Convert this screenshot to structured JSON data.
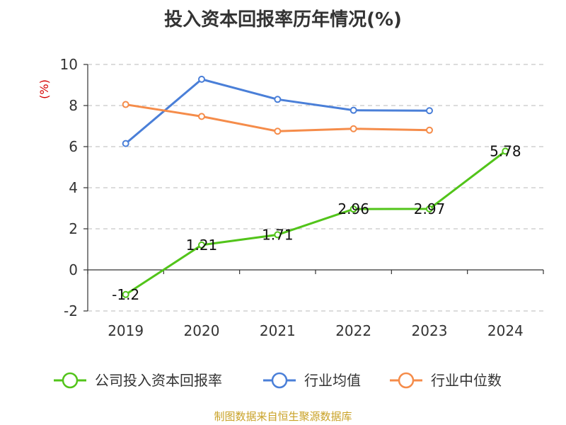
{
  "chart_data": {
    "type": "line",
    "title": "投入资本回报率历年情况(%)",
    "ylabel": "(%)",
    "xlabel": "",
    "categories": [
      "2019",
      "2020",
      "2021",
      "2022",
      "2023",
      "2024"
    ],
    "ylim": [
      -2,
      10
    ],
    "yticks": [
      -2,
      0,
      2,
      4,
      6,
      8,
      10
    ],
    "grid": true,
    "legend_position": "bottom",
    "series": [
      {
        "name": "公司投入资本回报率",
        "color": "#52c41a",
        "values": [
          -1.2,
          1.21,
          1.71,
          2.96,
          2.97,
          5.78
        ],
        "labels": [
          "-1.2",
          "1.21",
          "1.71",
          "2.96",
          "2.97",
          "5.78"
        ]
      },
      {
        "name": "行业均值",
        "color": "#4a7fd8",
        "values": [
          6.15,
          9.28,
          8.3,
          7.77,
          7.75,
          null
        ]
      },
      {
        "name": "行业中位数",
        "color": "#f58c4a",
        "values": [
          8.05,
          7.47,
          6.75,
          6.87,
          6.8,
          null
        ]
      }
    ]
  },
  "source": "制图数据来自恒生聚源数据库"
}
